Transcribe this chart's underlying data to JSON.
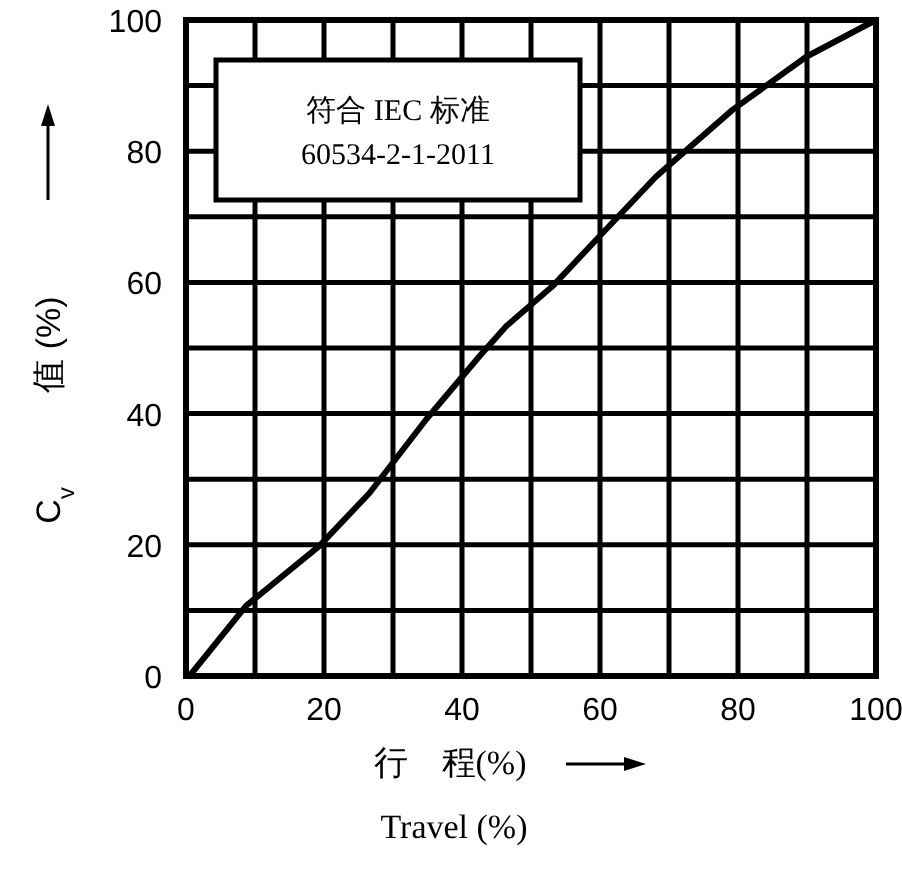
{
  "chart_data": {
    "type": "line",
    "xlabel": "行　程(%)\nTravel (%)",
    "ylabel": "C$_{v}$  值 (%)",
    "annotations": [
      "符合 IEC 标准\n60534-2-1-2011"
    ],
    "xlim": [
      0,
      100
    ],
    "ylim": [
      0,
      100
    ],
    "xticks": [
      0,
      {
        "value": 10,
        "label": null
      },
      20,
      {
        "value": 30,
        "label": null
      },
      40,
      {
        "value": 50,
        "label": null
      },
      60,
      {
        "value": 70,
        "label": null
      },
      80,
      {
        "value": 90,
        "label": null
      },
      100
    ],
    "yticks": [
      0,
      {
        "value": 10,
        "label": null
      },
      20,
      {
        "value": 30,
        "label": null
      },
      40,
      {
        "value": 50,
        "label": null
      },
      60,
      {
        "value": 70,
        "label": null
      },
      80,
      {
        "value": 90,
        "label": null
      },
      100
    ],
    "grid": true,
    "marker": "none",
    "line_style": "solid",
    "series": [
      {
        "color": "#000000",
        "x": [
          0.5,
          8.7,
          19.3,
          26.6,
          34.8,
          42.5,
          46.4,
          53.1,
          59.9,
          68.1,
          79.2,
          89.9,
          100
        ],
        "values": [
          0,
          10.7,
          19.8,
          27.9,
          39.1,
          48.7,
          53.3,
          59.4,
          67,
          76.1,
          86.3,
          94.4,
          100
        ]
      }
    ]
  }
}
